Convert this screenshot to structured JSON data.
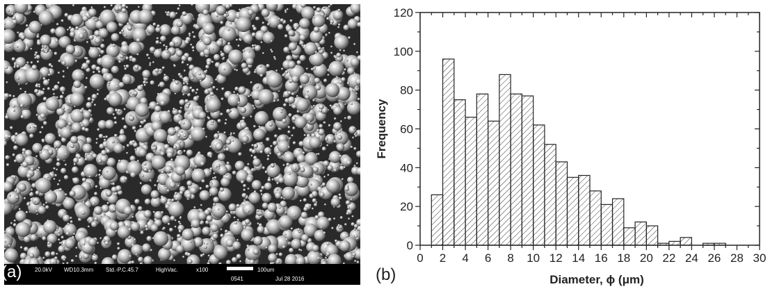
{
  "sem": {
    "info": {
      "voltage": "20.0kV",
      "working_distance": "WD10.3mm",
      "spot": "Std.-P.C.45.7",
      "vacuum": "HighVac.",
      "magnification": "x100",
      "scale_label": "100um",
      "image_number": "0541",
      "date": "Jul 28 2016"
    },
    "panel_label": "(a)"
  },
  "chart_data": {
    "type": "bar",
    "panel_label": "(b)",
    "title": "",
    "xlabel": "Diameter, ϕ (μm)",
    "ylabel": "Frequency",
    "xlim": [
      0,
      30
    ],
    "ylim": [
      0,
      120
    ],
    "xticks": [
      0,
      2,
      4,
      6,
      8,
      10,
      12,
      14,
      16,
      18,
      20,
      22,
      24,
      26,
      28,
      30
    ],
    "yticks": [
      0,
      20,
      40,
      60,
      80,
      100,
      120
    ],
    "bin_width": 1,
    "bins": [
      {
        "x0": 1,
        "x1": 2,
        "value": 26
      },
      {
        "x0": 2,
        "x1": 3,
        "value": 96
      },
      {
        "x0": 3,
        "x1": 4,
        "value": 75
      },
      {
        "x0": 4,
        "x1": 5,
        "value": 66
      },
      {
        "x0": 5,
        "x1": 6,
        "value": 78
      },
      {
        "x0": 6,
        "x1": 7,
        "value": 64
      },
      {
        "x0": 7,
        "x1": 8,
        "value": 88
      },
      {
        "x0": 8,
        "x1": 9,
        "value": 78
      },
      {
        "x0": 9,
        "x1": 10,
        "value": 77
      },
      {
        "x0": 10,
        "x1": 11,
        "value": 62
      },
      {
        "x0": 11,
        "x1": 12,
        "value": 52
      },
      {
        "x0": 12,
        "x1": 13,
        "value": 43
      },
      {
        "x0": 13,
        "x1": 14,
        "value": 35
      },
      {
        "x0": 14,
        "x1": 15,
        "value": 36
      },
      {
        "x0": 15,
        "x1": 16,
        "value": 28
      },
      {
        "x0": 16,
        "x1": 17,
        "value": 21
      },
      {
        "x0": 17,
        "x1": 18,
        "value": 24
      },
      {
        "x0": 18,
        "x1": 19,
        "value": 9
      },
      {
        "x0": 19,
        "x1": 20,
        "value": 12
      },
      {
        "x0": 20,
        "x1": 21,
        "value": 10
      },
      {
        "x0": 21,
        "x1": 22,
        "value": 1
      },
      {
        "x0": 22,
        "x1": 23,
        "value": 2
      },
      {
        "x0": 23,
        "x1": 24,
        "value": 4
      },
      {
        "x0": 25,
        "x1": 26,
        "value": 1
      },
      {
        "x0": 26,
        "x1": 27,
        "value": 1
      }
    ],
    "fill_pattern": "diagonal-hatch",
    "bar_outline_color": "#222222",
    "grid": false,
    "legend": "none"
  }
}
